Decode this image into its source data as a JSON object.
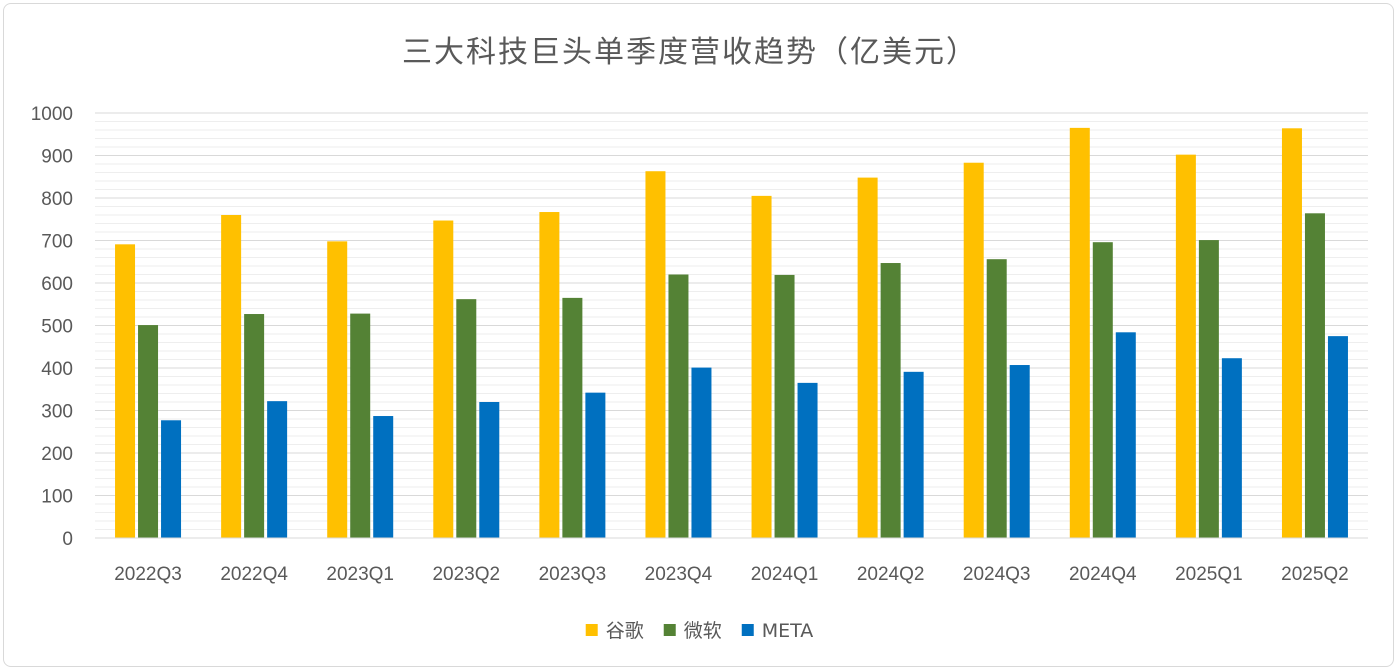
{
  "chart_data": {
    "type": "bar",
    "title": "三大科技巨头单季度营收趋势（亿美元）",
    "xlabel": "",
    "ylabel": "",
    "ylim": [
      0,
      1000
    ],
    "yticks": [
      0,
      100,
      200,
      300,
      400,
      500,
      600,
      700,
      800,
      900,
      1000
    ],
    "grid": true,
    "legend_position": "bottom",
    "categories": [
      "2022Q3",
      "2022Q4",
      "2023Q1",
      "2023Q2",
      "2023Q3",
      "2023Q4",
      "2024Q1",
      "2024Q2",
      "2024Q3",
      "2024Q4",
      "2025Q1",
      "2025Q2"
    ],
    "series": [
      {
        "name": "谷歌",
        "color": "#FFC000",
        "values": [
          691,
          760,
          698,
          747,
          767,
          863,
          805,
          848,
          883,
          965,
          902,
          964
        ]
      },
      {
        "name": "微软",
        "color": "#548235",
        "values": [
          501,
          527,
          528,
          562,
          565,
          620,
          619,
          647,
          656,
          696,
          701,
          764
        ]
      },
      {
        "name": "META",
        "color": "#0070C0",
        "values": [
          277,
          322,
          287,
          320,
          342,
          401,
          365,
          391,
          407,
          484,
          423,
          475
        ]
      }
    ]
  }
}
